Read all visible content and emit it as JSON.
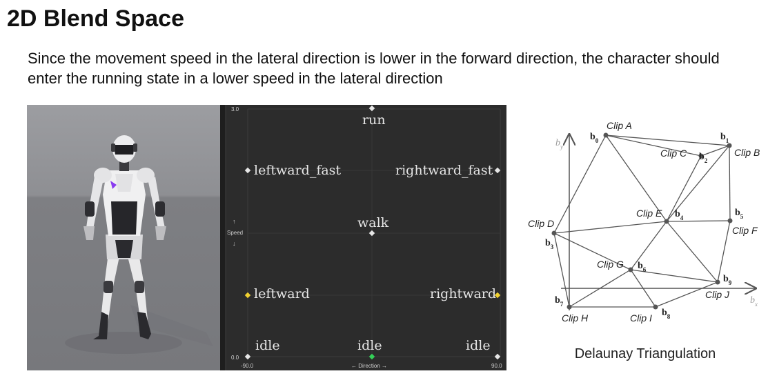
{
  "slide": {
    "title": "2D Blend Space",
    "description": "Since the movement speed in the lateral direction is lower in the forward direction, the character should enter the running state in a lower speed in the lateral direction"
  },
  "blend_space": {
    "y_axis_label": "Speed",
    "y_arrow_up": "↑",
    "y_arrow_down": "↓",
    "y_max": "3.0",
    "y_min": "0.0",
    "x_min": "-90.0",
    "x_max": "90.0",
    "x_axis_label": "← Direction →",
    "samples": {
      "run": "run",
      "leftward_fast": "leftward_fast",
      "rightward_fast": "rightward_fast",
      "walk": "walk",
      "leftward": "leftward",
      "rightward": "rightward",
      "idle_left": "idle",
      "idle_center": "idle",
      "idle_right": "idle"
    },
    "colors": {
      "background": "#2c2c2c",
      "grid": "#3a3a3a",
      "sample_point": "#e6e6e6",
      "highlight_point": "#f0d030",
      "current_point": "#34d058"
    }
  },
  "triangulation": {
    "caption": "Delaunay Triangulation",
    "axis_x": "bx",
    "axis_y": "by",
    "points": [
      {
        "id": "b0",
        "sub": "0",
        "clip": "Clip A"
      },
      {
        "id": "b1",
        "sub": "1",
        "clip": "Clip B"
      },
      {
        "id": "b2",
        "sub": "2",
        "clip": "Clip C"
      },
      {
        "id": "b3",
        "sub": "3",
        "clip": "Clip D"
      },
      {
        "id": "b4",
        "sub": "4",
        "clip": "Clip E"
      },
      {
        "id": "b5",
        "sub": "5",
        "clip": "Clip F"
      },
      {
        "id": "b6",
        "sub": "6",
        "clip": "Clip G"
      },
      {
        "id": "b7",
        "sub": "7",
        "clip": "Clip H"
      },
      {
        "id": "b8",
        "sub": "8",
        "clip": "Clip I"
      },
      {
        "id": "b9",
        "sub": "9",
        "clip": "Clip J"
      }
    ]
  }
}
